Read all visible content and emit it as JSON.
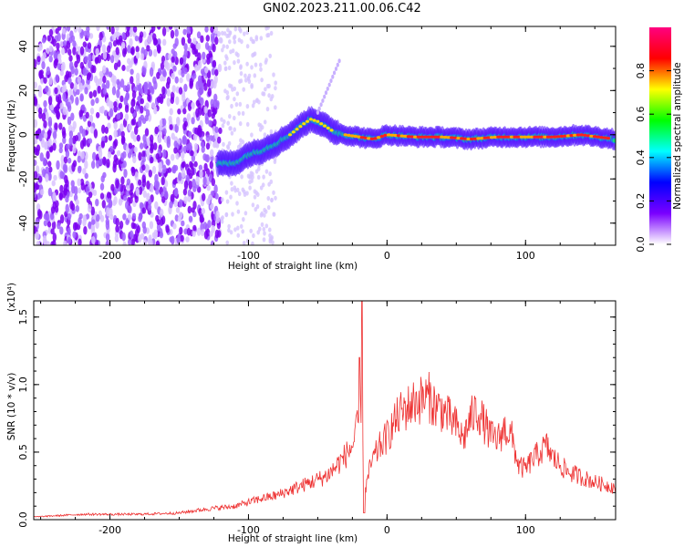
{
  "page": {
    "title": "GN02.2023.211.00.06.C42"
  },
  "chart_data": [
    {
      "type": "heatmap",
      "xlabel": "Height of straight line (km)",
      "ylabel": "Frequency (Hz)",
      "xlim": [
        -255,
        165
      ],
      "ylim": [
        -50,
        49
      ],
      "x_ticks": [
        "-200",
        "-100",
        "0",
        "100"
      ],
      "y_ticks": [
        "40",
        "20",
        "0",
        "-20",
        "-40"
      ],
      "colorbar": {
        "label": "Normalized spectral amplitude",
        "range": [
          0,
          1
        ],
        "ticks": [
          "0.0",
          "0.2",
          "0.4",
          "0.6",
          "0.8"
        ],
        "colors": [
          "#ffffff",
          "#7a00ff",
          "#0000ff",
          "#00ffff",
          "#00ff00",
          "#ffff00",
          "#ff0000",
          "#ff0080"
        ]
      },
      "ridge": {
        "x": [
          -122,
          -110,
          -100,
          -90,
          -80,
          -70,
          -60,
          -55,
          -50,
          -45,
          -40,
          -36,
          -30,
          -20,
          -10,
          0,
          20,
          40,
          60,
          80,
          100,
          120,
          140,
          165
        ],
        "y": [
          -13,
          -13,
          -9,
          -7,
          -4,
          0,
          5,
          7,
          6,
          4,
          2,
          1,
          0,
          -1,
          -2,
          0,
          -1,
          -1,
          -2,
          -1,
          -1,
          -1,
          0,
          -2
        ]
      }
    },
    {
      "type": "line",
      "xlabel": "Height of straight line (km)",
      "ylabel": "SNR (10 * v/v)",
      "multiplier": "(x10⁴)",
      "xlim": [
        -255,
        165
      ],
      "ylim": [
        0,
        1.62
      ],
      "x_ticks": [
        "-200",
        "-100",
        "0",
        "100"
      ],
      "y_ticks": [
        "0.0",
        "0.5",
        "1.0",
        "1.5"
      ],
      "line_color": "#ee3333",
      "series": [
        {
          "x": [
            -255,
            -220,
            -180,
            -150,
            -130,
            -110,
            -100,
            -90,
            -80,
            -70,
            -60,
            -50,
            -45,
            -40,
            -35,
            -30,
            -25,
            -22,
            -20,
            -18,
            -16,
            -14,
            -12,
            -10,
            -5,
            0,
            5,
            10,
            20,
            30,
            35,
            40,
            50,
            55,
            60,
            65,
            70,
            75,
            80,
            85,
            90,
            95,
            100,
            105,
            110,
            115,
            120,
            130,
            140,
            150,
            165
          ],
          "y": [
            0.02,
            0.04,
            0.04,
            0.05,
            0.08,
            0.1,
            0.13,
            0.16,
            0.18,
            0.22,
            0.26,
            0.3,
            0.32,
            0.36,
            0.42,
            0.48,
            0.55,
            0.65,
            0.8,
            0.95,
            0.2,
            0.3,
            0.4,
            0.45,
            0.55,
            0.62,
            0.72,
            0.8,
            0.88,
            0.92,
            0.85,
            0.82,
            0.7,
            0.6,
            0.75,
            0.82,
            0.72,
            0.62,
            0.6,
            0.68,
            0.62,
            0.4,
            0.38,
            0.45,
            0.5,
            0.55,
            0.46,
            0.36,
            0.32,
            0.28,
            0.24
          ]
        }
      ]
    }
  ]
}
